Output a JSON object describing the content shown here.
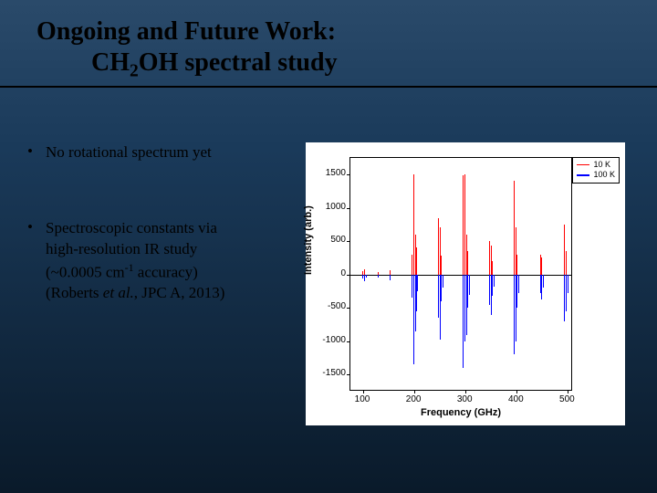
{
  "title": {
    "line1": "Ongoing and Future Work:",
    "line2_pre": "CH",
    "line2_sub": "2",
    "line2_post": "OH spectral study"
  },
  "bullets": [
    {
      "text": "No rotational spectrum yet"
    },
    {
      "lines": [
        "Spectroscopic constants via",
        "high-resolution IR study",
        {
          "pre": "(~0.0005 cm",
          "sup": "-1",
          "post": " accuracy)"
        },
        {
          "pre": "(Roberts ",
          "ital": "et al.",
          "post": ", JPC A, 2013)"
        }
      ]
    }
  ],
  "chart": {
    "type": "spectral-sticks",
    "xlabel": "Frequency (GHz)",
    "ylabel": "Intensity (arb.)",
    "xlim": [
      75,
      510
    ],
    "ylim": [
      -1750,
      1750
    ],
    "xtick_values": [
      100,
      200,
      300,
      400,
      500
    ],
    "ytick_values": [
      -1500,
      -1000,
      -500,
      0,
      500,
      1000,
      1500
    ],
    "background_color": "#ffffff",
    "axis_color": "#000000",
    "tick_fontsize": 10,
    "label_fontsize": 11,
    "legend": [
      {
        "label": "10 K",
        "color": "#ff0000"
      },
      {
        "label": "100 K",
        "color": "#0000ff"
      }
    ],
    "series_red": {
      "color": "#ff0000",
      "peaks": [
        {
          "x": 98,
          "y": 50
        },
        {
          "x": 102,
          "y": 80
        },
        {
          "x": 128,
          "y": 40
        },
        {
          "x": 152,
          "y": 70
        },
        {
          "x": 195,
          "y": 300
        },
        {
          "x": 198,
          "y": 1500
        },
        {
          "x": 201,
          "y": 600
        },
        {
          "x": 203,
          "y": 400
        },
        {
          "x": 246,
          "y": 850
        },
        {
          "x": 249,
          "y": 700
        },
        {
          "x": 252,
          "y": 280
        },
        {
          "x": 295,
          "y": 1480
        },
        {
          "x": 298,
          "y": 1500
        },
        {
          "x": 301,
          "y": 600
        },
        {
          "x": 304,
          "y": 350
        },
        {
          "x": 346,
          "y": 500
        },
        {
          "x": 349,
          "y": 440
        },
        {
          "x": 352,
          "y": 200
        },
        {
          "x": 394,
          "y": 1400
        },
        {
          "x": 397,
          "y": 700
        },
        {
          "x": 400,
          "y": 300
        },
        {
          "x": 445,
          "y": 300
        },
        {
          "x": 448,
          "y": 250
        },
        {
          "x": 493,
          "y": 750
        },
        {
          "x": 496,
          "y": 350
        }
      ]
    },
    "series_blue": {
      "color": "#0000ff",
      "peaks": [
        {
          "x": 98,
          "y": -60
        },
        {
          "x": 102,
          "y": -100
        },
        {
          "x": 105,
          "y": -40
        },
        {
          "x": 128,
          "y": -50
        },
        {
          "x": 152,
          "y": -90
        },
        {
          "x": 195,
          "y": -350
        },
        {
          "x": 198,
          "y": -1350
        },
        {
          "x": 201,
          "y": -850
        },
        {
          "x": 203,
          "y": -550
        },
        {
          "x": 206,
          "y": -250
        },
        {
          "x": 246,
          "y": -650
        },
        {
          "x": 249,
          "y": -980
        },
        {
          "x": 252,
          "y": -400
        },
        {
          "x": 255,
          "y": -200
        },
        {
          "x": 295,
          "y": -1400
        },
        {
          "x": 298,
          "y": -1000
        },
        {
          "x": 301,
          "y": -900
        },
        {
          "x": 304,
          "y": -500
        },
        {
          "x": 307,
          "y": -300
        },
        {
          "x": 346,
          "y": -450
        },
        {
          "x": 349,
          "y": -600
        },
        {
          "x": 352,
          "y": -320
        },
        {
          "x": 355,
          "y": -180
        },
        {
          "x": 394,
          "y": -1200
        },
        {
          "x": 397,
          "y": -1000
        },
        {
          "x": 400,
          "y": -500
        },
        {
          "x": 403,
          "y": -280
        },
        {
          "x": 445,
          "y": -280
        },
        {
          "x": 448,
          "y": -380
        },
        {
          "x": 451,
          "y": -200
        },
        {
          "x": 493,
          "y": -700
        },
        {
          "x": 496,
          "y": -550
        },
        {
          "x": 499,
          "y": -280
        }
      ]
    }
  }
}
